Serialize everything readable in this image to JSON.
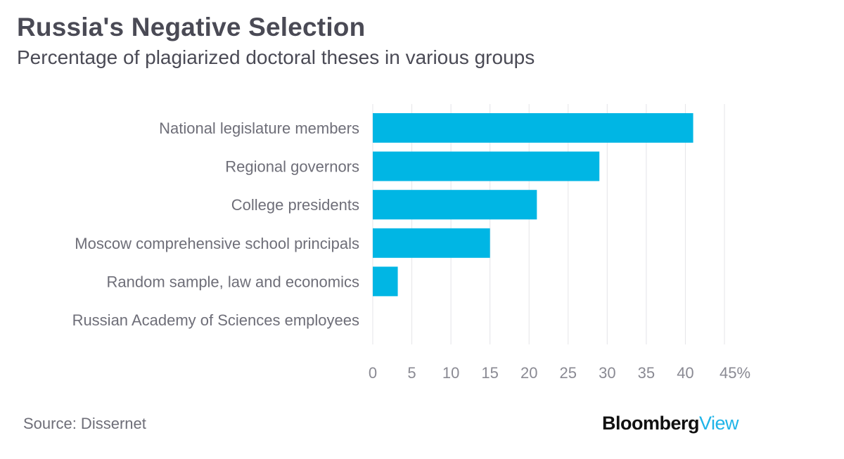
{
  "title": "Russia's Negative Selection",
  "subtitle": "Percentage of plagiarized doctoral theses in various groups",
  "source": "Source: Dissernet",
  "logo": {
    "brand": "Bloomberg",
    "sub": "View"
  },
  "colors": {
    "bar": "#00b6e4",
    "grid": "#e4e4e8",
    "text": "#4a4a55"
  },
  "chart_data": {
    "type": "bar",
    "orientation": "horizontal",
    "title": "Russia's Negative Selection",
    "subtitle": "Percentage of plagiarized doctoral theses in various groups",
    "categories": [
      "National legislature members",
      "Regional governors",
      "College presidents",
      "Moscow comprehensive school principals",
      "Random sample, law and economics",
      "Russian Academy of Sciences employees"
    ],
    "values": [
      41,
      29,
      21,
      15,
      3.2,
      0
    ],
    "xlim": [
      0,
      45
    ],
    "ticks": [
      0,
      5,
      10,
      15,
      20,
      25,
      30,
      35,
      40,
      45
    ],
    "tick_labels": [
      "0",
      "5",
      "10",
      "15",
      "20",
      "25",
      "30",
      "35",
      "40",
      "45%"
    ],
    "xlabel": "",
    "ylabel": "",
    "grid": true
  }
}
